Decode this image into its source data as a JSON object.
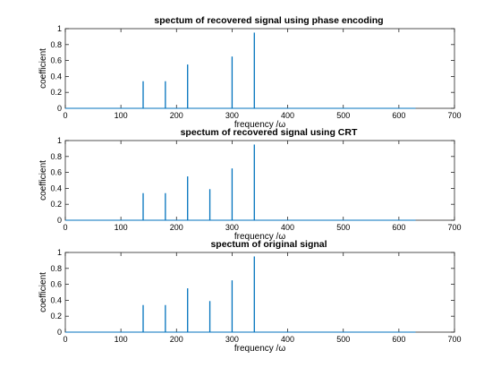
{
  "colors": {
    "series": "#0072bd",
    "axis": "#262626"
  },
  "chart_data": [
    {
      "type": "line",
      "title": "spectum of recovered signal using phase encoding",
      "xlabel": "frequency /ω",
      "ylabel": "coefficient",
      "xlim": [
        0,
        700
      ],
      "ylim": [
        0,
        1
      ],
      "xticks": [
        "0",
        "100",
        "200",
        "300",
        "400",
        "500",
        "600",
        "700"
      ],
      "yticks": [
        "0",
        "0.2",
        "0.4",
        "0.6",
        "0.8",
        "1"
      ],
      "line_extent": [
        0,
        630
      ],
      "grid": false,
      "series": [
        {
          "x": [
            140,
            180,
            220,
            300,
            340
          ],
          "values": [
            0.34,
            0.34,
            0.55,
            0.65,
            0.95
          ]
        }
      ]
    },
    {
      "type": "line",
      "title": "spectum of recovered signal using CRT",
      "xlabel": "frequency /ω",
      "ylabel": "coefficient",
      "xlim": [
        0,
        700
      ],
      "ylim": [
        0,
        1
      ],
      "xticks": [
        "0",
        "100",
        "200",
        "300",
        "400",
        "500",
        "600",
        "700"
      ],
      "yticks": [
        "0",
        "0.2",
        "0.4",
        "0.6",
        "0.8",
        "1"
      ],
      "line_extent": [
        0,
        630
      ],
      "grid": false,
      "series": [
        {
          "x": [
            140,
            180,
            220,
            260,
            300,
            340
          ],
          "values": [
            0.34,
            0.34,
            0.55,
            0.39,
            0.65,
            0.95
          ]
        }
      ]
    },
    {
      "type": "line",
      "title": "spectum of original signal",
      "xlabel": "frequency /ω",
      "ylabel": "coefficient",
      "xlim": [
        0,
        700
      ],
      "ylim": [
        0,
        1
      ],
      "xticks": [
        "0",
        "100",
        "200",
        "300",
        "400",
        "500",
        "600",
        "700"
      ],
      "yticks": [
        "0",
        "0.2",
        "0.4",
        "0.6",
        "0.8",
        "1"
      ],
      "line_extent": [
        0,
        630
      ],
      "grid": false,
      "series": [
        {
          "x": [
            140,
            180,
            220,
            260,
            300,
            340
          ],
          "values": [
            0.34,
            0.34,
            0.55,
            0.39,
            0.65,
            0.95
          ]
        }
      ]
    }
  ]
}
